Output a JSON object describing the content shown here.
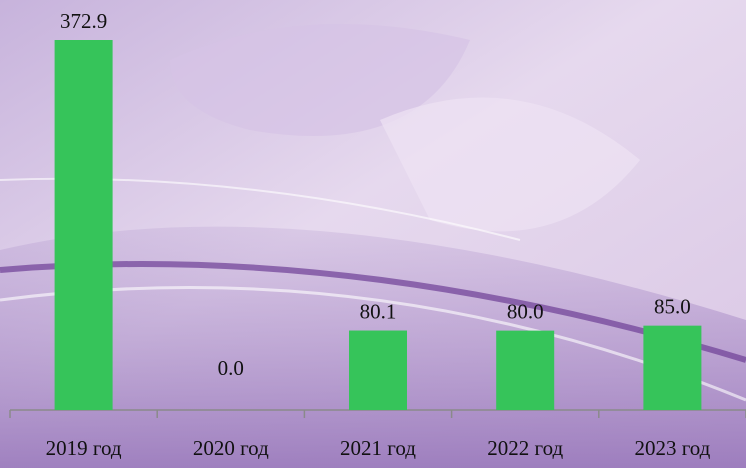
{
  "chart_data": {
    "type": "bar",
    "categories": [
      "2019 год",
      "2020 год",
      "2021 год",
      "2022 год",
      "2023 год"
    ],
    "values": [
      372.9,
      0.0,
      80.1,
      80.0,
      85.0
    ],
    "value_labels": [
      "372.9",
      "0.0",
      "80.1",
      "80.0",
      "85.0"
    ],
    "color": "#36c45a"
  }
}
